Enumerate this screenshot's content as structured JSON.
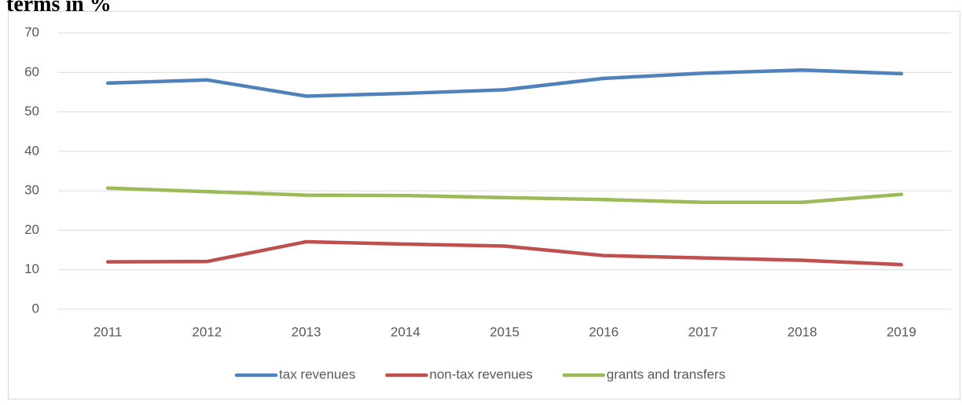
{
  "chart_data": {
    "type": "line",
    "title": "terms in %",
    "categories": [
      "2011",
      "2012",
      "2013",
      "2014",
      "2015",
      "2016",
      "2017",
      "2018",
      "2019"
    ],
    "series": [
      {
        "name": "tax revenues",
        "color": "#4f81bd",
        "values": [
          57.3,
          58.1,
          54.0,
          54.7,
          55.6,
          58.5,
          59.8,
          60.6,
          59.7
        ]
      },
      {
        "name": "non-tax revenues",
        "color": "#c0504d",
        "values": [
          12.0,
          12.1,
          17.1,
          16.5,
          16.0,
          13.6,
          13.0,
          12.4,
          11.3
        ]
      },
      {
        "name": "grants and transfers",
        "color": "#9bbb59",
        "values": [
          30.7,
          29.8,
          28.9,
          28.8,
          28.3,
          27.8,
          27.1,
          27.1,
          29.1
        ]
      }
    ],
    "ylim": [
      0,
      70
    ],
    "yticks": [
      0,
      10,
      20,
      30,
      40,
      50,
      60,
      70
    ],
    "grid": true,
    "legend": "bottom"
  }
}
